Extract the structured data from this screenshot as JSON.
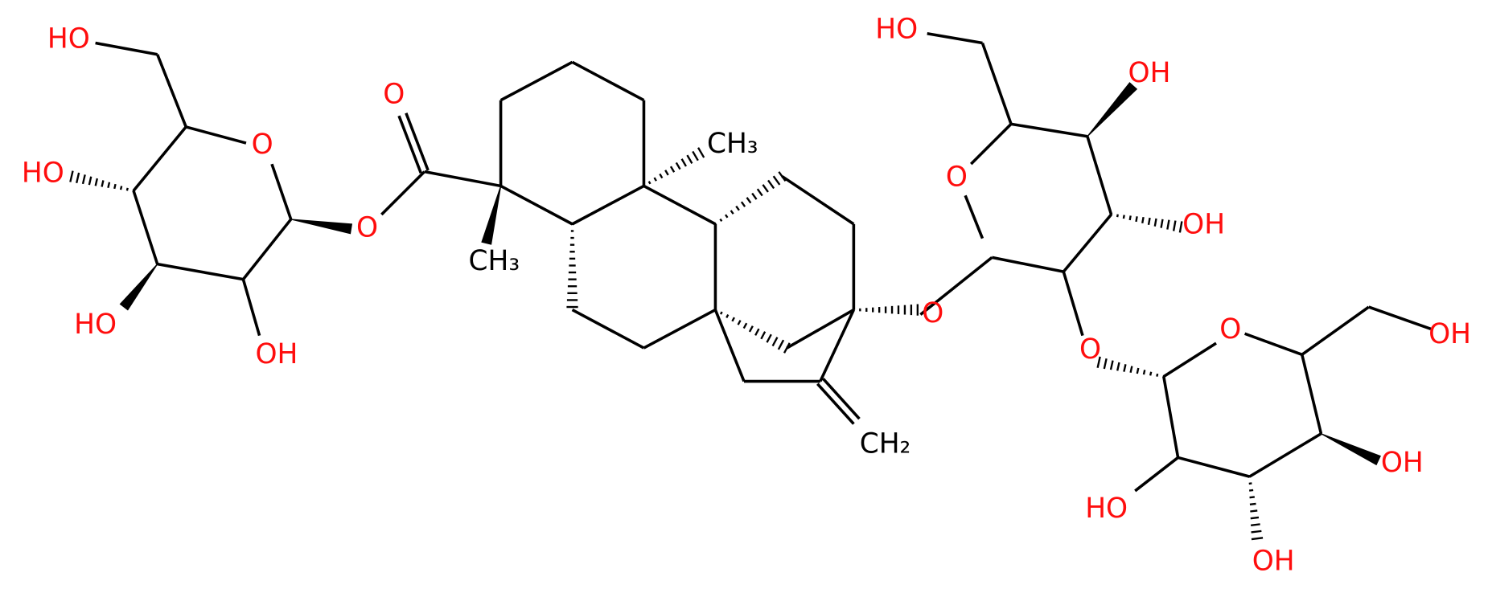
{
  "diagram": {
    "labels": [
      "HO",
      "O",
      "HO",
      "O",
      "O",
      "HO",
      "OH",
      "CH₃",
      "CH₃",
      "HO",
      "OH",
      "O",
      "OH",
      "O",
      "O",
      "O",
      "OH",
      "CH₂",
      "OH",
      "HO",
      "OH"
    ]
  }
}
